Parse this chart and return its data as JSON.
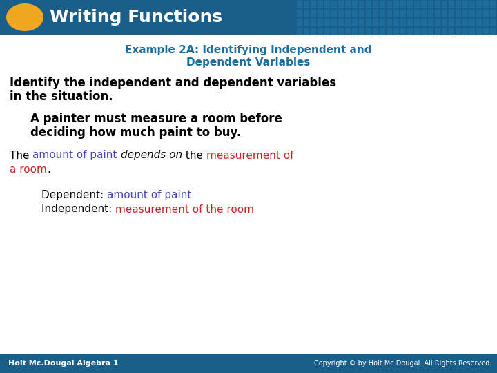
{
  "title_bar_color": "#1a5f8a",
  "title_bar_pattern_color": "#2277aa",
  "title_text": "Writing Functions",
  "title_text_color": "#ffffff",
  "oval_color": "#f0a820",
  "subtitle_text_line1": "Example 2A: Identifying Independent and",
  "subtitle_text_line2": "Dependent Variables",
  "subtitle_color": "#1a6ea0",
  "body_text1_line1": "Identify the independent and dependent variables",
  "body_text1_line2": "in the situation.",
  "body_text1_color": "#000000",
  "indented_text1_line1": "A painter must measure a room before",
  "indented_text1_line2": "deciding how much paint to buy.",
  "indented_text1_color": "#000000",
  "sentence_parts_line1": [
    {
      "text": "The ",
      "color": "#000000",
      "style": "normal"
    },
    {
      "text": "amount of paint",
      "color": "#4444bb",
      "style": "normal"
    },
    {
      "text": " ",
      "color": "#000000",
      "style": "normal"
    },
    {
      "text": "depends on",
      "color": "#000000",
      "style": "italic"
    },
    {
      "text": " the ",
      "color": "#000000",
      "style": "normal"
    },
    {
      "text": "measurement of",
      "color": "#cc2222",
      "style": "normal"
    }
  ],
  "sentence_parts_line2": [
    {
      "text": "a room",
      "color": "#cc2222",
      "style": "normal"
    },
    {
      "text": ".",
      "color": "#000000",
      "style": "normal"
    }
  ],
  "dep_label": "Dependent: ",
  "dep_value": "amount of paint",
  "dep_label_color": "#000000",
  "dep_value_color": "#4444bb",
  "indep_label": "Independent: ",
  "indep_value": "measurement of the room",
  "indep_label_color": "#000000",
  "indep_value_color": "#cc2222",
  "footer_bg_color": "#1a5f8a",
  "footer_left_text": "Holt Mc.Dougal Algebra 1",
  "footer_right_text": "Copyright © by Holt Mc Dougal. All Rights Reserved.",
  "footer_text_color": "#ffffff",
  "bg_color": "#ffffff",
  "fig_width": 7.2,
  "fig_height": 5.4,
  "dpi": 100
}
